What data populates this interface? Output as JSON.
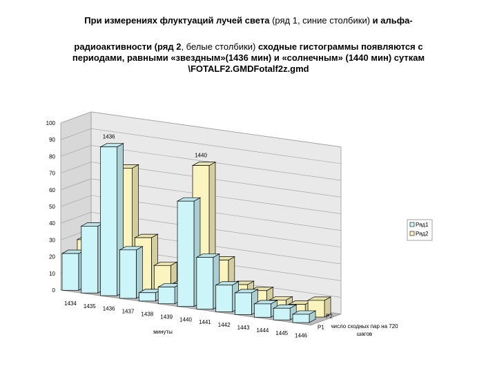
{
  "title": {
    "line1_bold": "При измерениях флуктуаций лучей света",
    "line1_plain": " (ряд 1, синие столбики) ",
    "line1_bold_end": "и альфа-",
    "line2_bold": "радиоактивности (ряд 2",
    "line2_plain": ", белые     столбики) ",
    "line2_bold_end": "сходные гистограммы появляются с",
    "line3": "периодами, равными «звездным»(1436 мин) и «солнечным» (1440 мин) суткам",
    "line4": "\\FOTALF2.GMDFotalf2z.gmd"
  },
  "chart_data": {
    "type": "bar",
    "subtype": "3d-clustered-depth",
    "categories": [
      "1434",
      "1435",
      "1436",
      "1437",
      "1438",
      "1439",
      "1440",
      "1441",
      "1442",
      "1443",
      "1444",
      "1445",
      "1446"
    ],
    "series": [
      {
        "name": "Ряд1",
        "row_label": "P1",
        "color": "#ccf5fa",
        "values": [
          22,
          40,
          89,
          29,
          5,
          10,
          63,
          31,
          16,
          13,
          8,
          7,
          5
        ]
      },
      {
        "name": "Ряд2",
        "row_label": "P2",
        "color": "#fbf4be",
        "values": [
          27,
          20,
          73,
          33,
          18,
          9,
          81,
          26,
          13,
          11,
          7,
          6,
          10
        ]
      }
    ],
    "annotations": [
      {
        "category": "1436",
        "text": "1436"
      },
      {
        "category": "1440",
        "text": "1440"
      }
    ],
    "xlabel": "минуты",
    "depth_axis_label": "число сходных пар на 720 шагов",
    "ylabel": "",
    "ylim": [
      0,
      100
    ],
    "ytick_step": 10,
    "grid": true,
    "legend_position": "right"
  }
}
